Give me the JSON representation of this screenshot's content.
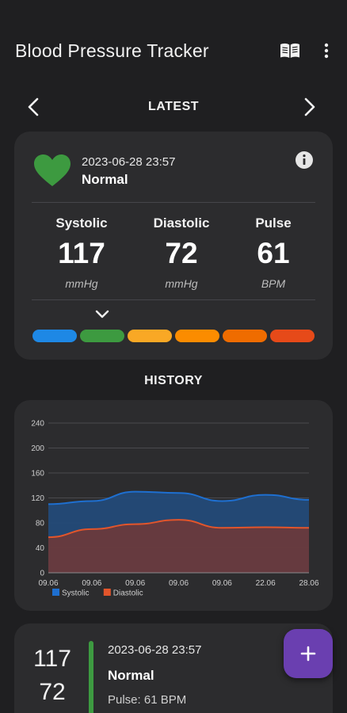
{
  "appbar": {
    "title": "Blood Pressure Tracker",
    "icons": [
      "book-open-icon",
      "more-vertical-icon"
    ]
  },
  "latest": {
    "label": "LATEST",
    "date": "2023-06-28 23:57",
    "status": "Normal",
    "status_color": "#3d9a40",
    "metrics": [
      {
        "label": "Systolic",
        "value": "117",
        "unit": "mmHg"
      },
      {
        "label": "Diastolic",
        "value": "72",
        "unit": "mmHg"
      },
      {
        "label": "Pulse",
        "value": "61",
        "unit": "BPM"
      }
    ],
    "scale_colors": [
      "#1e88e5",
      "#3d9a40",
      "#f9a825",
      "#fb8c00",
      "#ef6c00",
      "#e64a19"
    ],
    "selected_index": 1
  },
  "history": {
    "label": "HISTORY"
  },
  "chart_data": {
    "type": "area",
    "categories": [
      "09.06",
      "09.06",
      "09.06",
      "09.06",
      "09.06",
      "22.06",
      "28.06"
    ],
    "series": [
      {
        "name": "Systolic",
        "color": "#1e6fd0",
        "values": [
          110,
          115,
          130,
          128,
          115,
          125,
          117
        ]
      },
      {
        "name": "Diastolic",
        "color": "#e2552b",
        "values": [
          57,
          70,
          78,
          85,
          72,
          73,
          72
        ]
      }
    ],
    "y_ticks": [
      "0",
      "40",
      "80",
      "120",
      "160",
      "200",
      "240"
    ],
    "ylim": [
      0,
      240
    ],
    "grid": true,
    "legend": "bottom-left"
  },
  "record": {
    "systolic": "117",
    "diastolic": "72",
    "date": "2023-06-28 23:57",
    "status": "Normal",
    "pulse": "Pulse: 61 BPM"
  },
  "fab": {
    "icon": "plus-icon"
  }
}
